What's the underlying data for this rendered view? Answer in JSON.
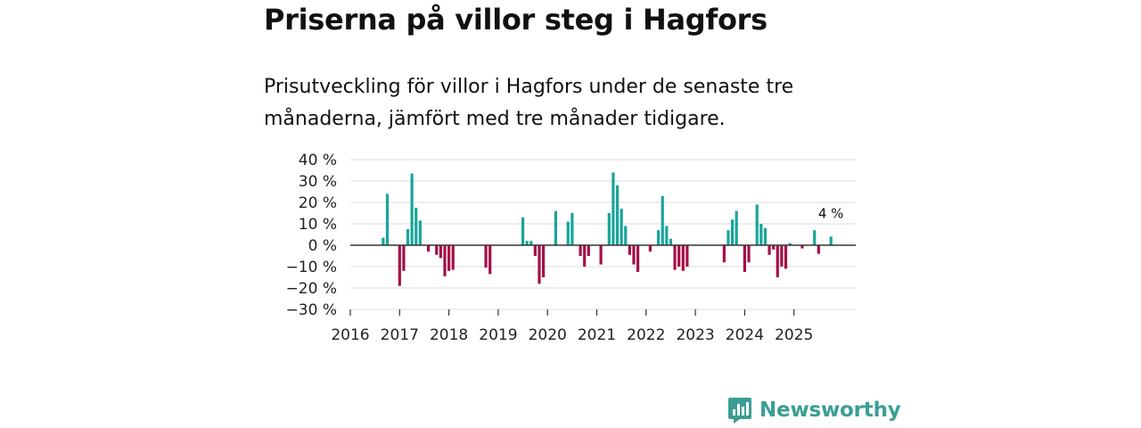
{
  "title": "Priserna på villor steg i Hagfors",
  "subtitle": "Prisutveckling för villor i Hagfors under de senaste tre månaderna, jämfört med tre månader tidigare.",
  "brand": {
    "name": "Newsworthy",
    "icon": "newsworthy-logo-icon"
  },
  "colors": {
    "positive": "#18a59a",
    "negative": "#a50f47",
    "grid": "#dddddd",
    "zero_line": "#333333",
    "brand": "#3a9e94"
  },
  "chart_data": {
    "type": "bar",
    "title": "Priserna på villor steg i Hagfors",
    "xlabel": "",
    "ylabel": "",
    "ylim": [
      -30,
      40
    ],
    "yticks": [
      40,
      30,
      20,
      10,
      0,
      -10,
      -20,
      -30
    ],
    "ytick_labels": [
      "40 %",
      "30 %",
      "20 %",
      "10 %",
      "0 %",
      "−10 %",
      "−20 %",
      "−30 %"
    ],
    "xticks": [
      "2016",
      "2017",
      "2018",
      "2019",
      "2020",
      "2021",
      "2022",
      "2023",
      "2024",
      "2025"
    ],
    "x_start": "2016-01",
    "x_end": "2026-03",
    "grid": true,
    "data_label": {
      "x": "2025-10",
      "text": "4 %"
    },
    "series": [
      {
        "name": "Prisutveckling",
        "points": [
          {
            "x": "2016-09",
            "y": 3.5
          },
          {
            "x": "2016-10",
            "y": 24
          },
          {
            "x": "2017-01",
            "y": -19
          },
          {
            "x": "2017-02",
            "y": -12
          },
          {
            "x": "2017-03",
            "y": 7.5
          },
          {
            "x": "2017-04",
            "y": 33.5
          },
          {
            "x": "2017-05",
            "y": 17.5
          },
          {
            "x": "2017-06",
            "y": 11.5
          },
          {
            "x": "2017-08",
            "y": -3
          },
          {
            "x": "2017-10",
            "y": -4.5
          },
          {
            "x": "2017-11",
            "y": -6
          },
          {
            "x": "2017-12",
            "y": -14.5
          },
          {
            "x": "2018-01",
            "y": -12
          },
          {
            "x": "2018-02",
            "y": -11.5
          },
          {
            "x": "2018-10",
            "y": -10.5
          },
          {
            "x": "2018-11",
            "y": -13.5
          },
          {
            "x": "2019-07",
            "y": 13
          },
          {
            "x": "2019-08",
            "y": 2
          },
          {
            "x": "2019-09",
            "y": 2
          },
          {
            "x": "2019-10",
            "y": -5
          },
          {
            "x": "2019-11",
            "y": -18
          },
          {
            "x": "2019-12",
            "y": -15
          },
          {
            "x": "2020-03",
            "y": 16
          },
          {
            "x": "2020-06",
            "y": 11
          },
          {
            "x": "2020-07",
            "y": 15
          },
          {
            "x": "2020-09",
            "y": -5
          },
          {
            "x": "2020-10",
            "y": -10
          },
          {
            "x": "2020-11",
            "y": -5
          },
          {
            "x": "2021-02",
            "y": -9
          },
          {
            "x": "2021-04",
            "y": 15
          },
          {
            "x": "2021-05",
            "y": 34
          },
          {
            "x": "2021-06",
            "y": 28
          },
          {
            "x": "2021-07",
            "y": 17
          },
          {
            "x": "2021-08",
            "y": 9
          },
          {
            "x": "2021-09",
            "y": -4.5
          },
          {
            "x": "2021-10",
            "y": -9
          },
          {
            "x": "2021-11",
            "y": -12.5
          },
          {
            "x": "2022-02",
            "y": -3
          },
          {
            "x": "2022-04",
            "y": 7
          },
          {
            "x": "2022-05",
            "y": 23
          },
          {
            "x": "2022-06",
            "y": 9
          },
          {
            "x": "2022-07",
            "y": 3
          },
          {
            "x": "2022-08",
            "y": -11.5
          },
          {
            "x": "2022-09",
            "y": -10
          },
          {
            "x": "2022-10",
            "y": -12
          },
          {
            "x": "2022-11",
            "y": -10
          },
          {
            "x": "2023-08",
            "y": -8
          },
          {
            "x": "2023-09",
            "y": 7
          },
          {
            "x": "2023-10",
            "y": 12
          },
          {
            "x": "2023-11",
            "y": 16
          },
          {
            "x": "2024-01",
            "y": -12.5
          },
          {
            "x": "2024-02",
            "y": -8
          },
          {
            "x": "2024-04",
            "y": 19
          },
          {
            "x": "2024-05",
            "y": 10
          },
          {
            "x": "2024-06",
            "y": 8
          },
          {
            "x": "2024-07",
            "y": -4.5
          },
          {
            "x": "2024-08",
            "y": -2
          },
          {
            "x": "2024-09",
            "y": -15
          },
          {
            "x": "2024-10",
            "y": -10
          },
          {
            "x": "2024-11",
            "y": -11
          },
          {
            "x": "2024-12",
            "y": 1
          },
          {
            "x": "2025-03",
            "y": -1.5
          },
          {
            "x": "2025-06",
            "y": 7
          },
          {
            "x": "2025-07",
            "y": -4
          },
          {
            "x": "2025-10",
            "y": 4
          }
        ]
      }
    ]
  }
}
